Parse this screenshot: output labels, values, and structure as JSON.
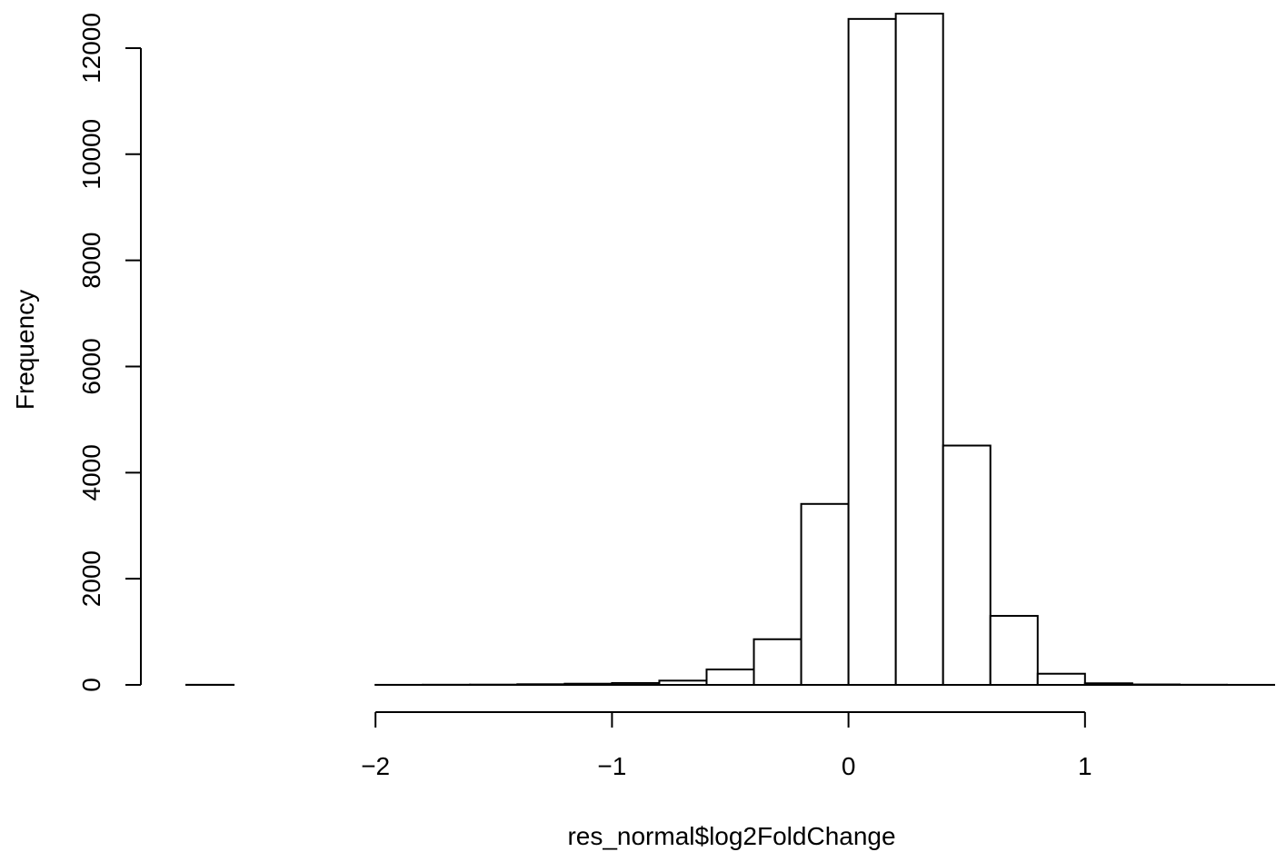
{
  "chart_data": {
    "type": "bar",
    "title": "",
    "xlabel": "res_normal$log2FoldChange",
    "ylabel": "Frequency",
    "bin_edges": [
      -2.8,
      -2.6,
      -2.4,
      -2.2,
      -2.0,
      -1.8,
      -1.6,
      -1.4,
      -1.2,
      -1.0,
      -0.8,
      -0.6,
      -0.4,
      -0.2,
      0.0,
      0.2,
      0.4,
      0.6,
      0.8,
      1.0,
      1.2,
      1.4,
      1.6,
      1.8
    ],
    "values": [
      2,
      0,
      0,
      0,
      1,
      3,
      5,
      12,
      22,
      35,
      80,
      290,
      860,
      3410,
      12550,
      12650,
      4510,
      1300,
      210,
      30,
      8,
      3,
      1
    ],
    "xticks": [
      -2,
      -1,
      0,
      1
    ],
    "xtick_labels": [
      "−2",
      "−1",
      "0",
      "1"
    ],
    "yticks": [
      0,
      2000,
      4000,
      6000,
      8000,
      10000,
      12000
    ],
    "ytick_labels": [
      "0",
      "2000",
      "4000",
      "6000",
      "8000",
      "10000",
      "12000"
    ],
    "xlim": [
      -2.8,
      1.8
    ],
    "ylim": [
      0,
      12650
    ],
    "grid": false,
    "bar_fill": "#ffffff",
    "bar_stroke": "#000000"
  }
}
